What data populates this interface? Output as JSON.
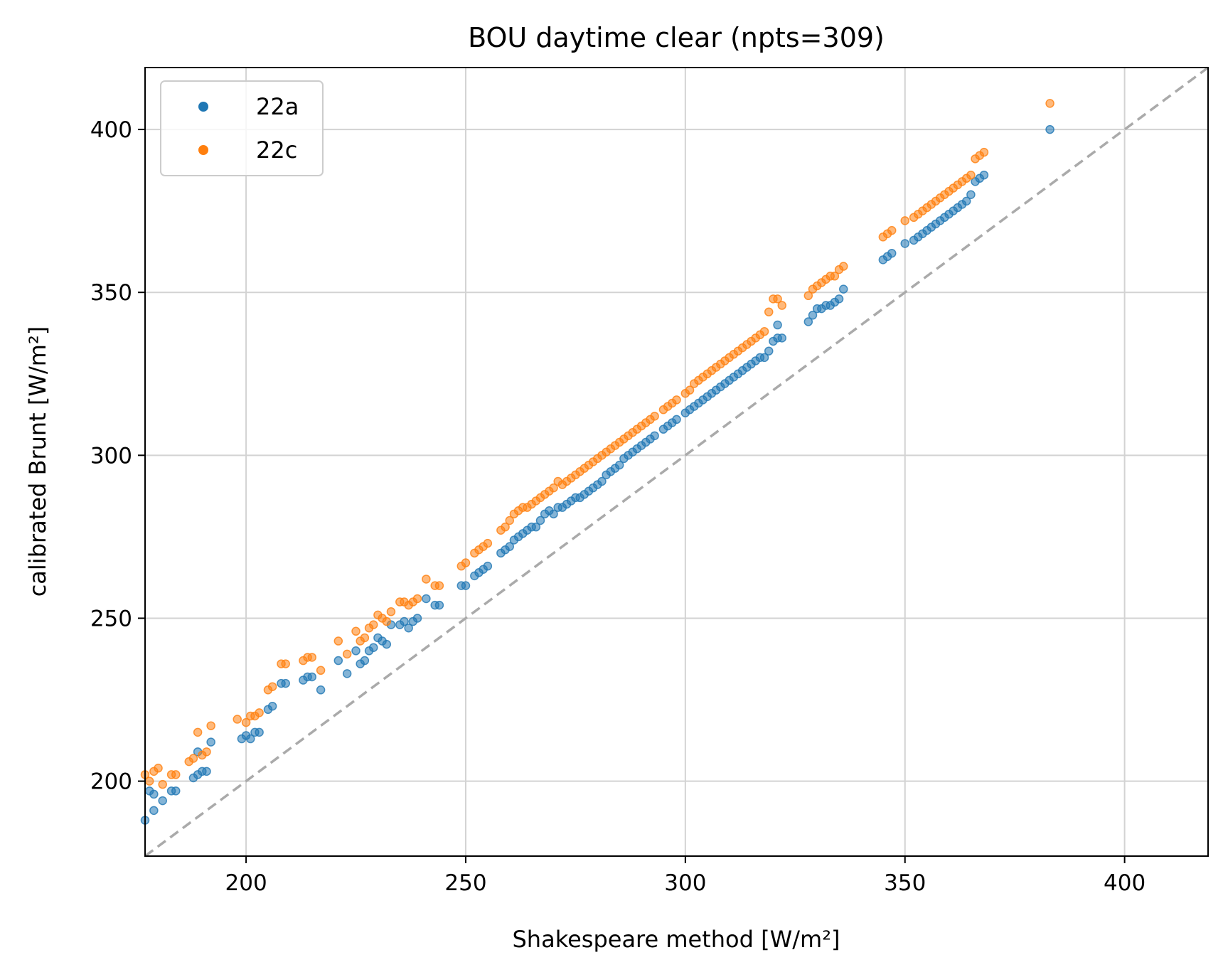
{
  "chart_data": {
    "type": "scatter",
    "title": "BOU daytime clear (npts=309)",
    "xlabel": "Shakespeare method [W/m²]",
    "ylabel": "calibrated Brunt [W/m²]",
    "xlim": [
      177,
      419
    ],
    "ylim": [
      177,
      419
    ],
    "xticks": [
      200,
      250,
      300,
      350,
      400
    ],
    "yticks": [
      200,
      250,
      300,
      350,
      400
    ],
    "grid": true,
    "legend_position": "top-left",
    "reference_line": {
      "type": "identity",
      "style": "dashed",
      "color": "#aaaaaa"
    },
    "series": [
      {
        "name": "22a",
        "color": "#1f77b4",
        "points": [
          [
            177,
            188
          ],
          [
            178,
            197
          ],
          [
            179,
            196
          ],
          [
            179,
            191
          ],
          [
            181,
            194
          ],
          [
            183,
            197
          ],
          [
            184,
            197
          ],
          [
            188,
            201
          ],
          [
            189,
            202
          ],
          [
            189,
            209
          ],
          [
            190,
            203
          ],
          [
            191,
            203
          ],
          [
            192,
            212
          ],
          [
            199,
            213
          ],
          [
            200,
            214
          ],
          [
            201,
            213
          ],
          [
            202,
            215
          ],
          [
            203,
            215
          ],
          [
            205,
            222
          ],
          [
            206,
            223
          ],
          [
            208,
            230
          ],
          [
            209,
            230
          ],
          [
            213,
            231
          ],
          [
            214,
            232
          ],
          [
            215,
            232
          ],
          [
            217,
            228
          ],
          [
            221,
            237
          ],
          [
            223,
            233
          ],
          [
            225,
            240
          ],
          [
            226,
            236
          ],
          [
            227,
            237
          ],
          [
            228,
            240
          ],
          [
            229,
            241
          ],
          [
            230,
            244
          ],
          [
            231,
            243
          ],
          [
            232,
            242
          ],
          [
            233,
            248
          ],
          [
            235,
            248
          ],
          [
            236,
            249
          ],
          [
            237,
            247
          ],
          [
            238,
            249
          ],
          [
            239,
            250
          ],
          [
            241,
            256
          ],
          [
            243,
            254
          ],
          [
            244,
            254
          ],
          [
            249,
            260
          ],
          [
            250,
            260
          ],
          [
            252,
            263
          ],
          [
            253,
            264
          ],
          [
            254,
            265
          ],
          [
            255,
            266
          ],
          [
            258,
            270
          ],
          [
            259,
            271
          ],
          [
            260,
            272
          ],
          [
            261,
            274
          ],
          [
            262,
            275
          ],
          [
            263,
            276
          ],
          [
            264,
            277
          ],
          [
            265,
            278
          ],
          [
            266,
            278
          ],
          [
            267,
            280
          ],
          [
            268,
            282
          ],
          [
            269,
            283
          ],
          [
            270,
            282
          ],
          [
            271,
            284
          ],
          [
            272,
            284
          ],
          [
            273,
            285
          ],
          [
            274,
            286
          ],
          [
            275,
            287
          ],
          [
            276,
            287
          ],
          [
            277,
            288
          ],
          [
            278,
            289
          ],
          [
            279,
            290
          ],
          [
            280,
            291
          ],
          [
            281,
            292
          ],
          [
            282,
            294
          ],
          [
            283,
            295
          ],
          [
            284,
            296
          ],
          [
            285,
            297
          ],
          [
            286,
            299
          ],
          [
            287,
            300
          ],
          [
            288,
            301
          ],
          [
            289,
            302
          ],
          [
            290,
            303
          ],
          [
            291,
            304
          ],
          [
            292,
            305
          ],
          [
            293,
            306
          ],
          [
            295,
            308
          ],
          [
            296,
            309
          ],
          [
            297,
            310
          ],
          [
            298,
            311
          ],
          [
            300,
            313
          ],
          [
            301,
            314
          ],
          [
            302,
            315
          ],
          [
            303,
            316
          ],
          [
            304,
            317
          ],
          [
            305,
            318
          ],
          [
            306,
            319
          ],
          [
            307,
            320
          ],
          [
            308,
            321
          ],
          [
            309,
            322
          ],
          [
            310,
            323
          ],
          [
            311,
            324
          ],
          [
            312,
            325
          ],
          [
            313,
            326
          ],
          [
            314,
            327
          ],
          [
            315,
            328
          ],
          [
            316,
            329
          ],
          [
            317,
            330
          ],
          [
            318,
            330
          ],
          [
            319,
            332
          ],
          [
            320,
            335
          ],
          [
            321,
            336
          ],
          [
            322,
            336
          ],
          [
            321,
            340
          ],
          [
            328,
            341
          ],
          [
            329,
            343
          ],
          [
            330,
            345
          ],
          [
            331,
            345
          ],
          [
            332,
            346
          ],
          [
            333,
            346
          ],
          [
            334,
            347
          ],
          [
            335,
            348
          ],
          [
            336,
            351
          ],
          [
            345,
            360
          ],
          [
            346,
            361
          ],
          [
            347,
            362
          ],
          [
            350,
            365
          ],
          [
            352,
            366
          ],
          [
            353,
            367
          ],
          [
            354,
            368
          ],
          [
            355,
            369
          ],
          [
            356,
            370
          ],
          [
            357,
            371
          ],
          [
            358,
            372
          ],
          [
            359,
            373
          ],
          [
            360,
            374
          ],
          [
            361,
            375
          ],
          [
            362,
            376
          ],
          [
            363,
            377
          ],
          [
            364,
            378
          ],
          [
            365,
            380
          ],
          [
            366,
            384
          ],
          [
            367,
            385
          ],
          [
            368,
            386
          ],
          [
            383,
            400
          ]
        ]
      },
      {
        "name": "22c",
        "color": "#ff7f0e",
        "points": [
          [
            177,
            202
          ],
          [
            178,
            200
          ],
          [
            179,
            203
          ],
          [
            180,
            204
          ],
          [
            181,
            199
          ],
          [
            183,
            202
          ],
          [
            184,
            202
          ],
          [
            187,
            206
          ],
          [
            188,
            207
          ],
          [
            189,
            215
          ],
          [
            190,
            208
          ],
          [
            191,
            209
          ],
          [
            192,
            217
          ],
          [
            198,
            219
          ],
          [
            200,
            218
          ],
          [
            201,
            220
          ],
          [
            202,
            220
          ],
          [
            203,
            221
          ],
          [
            205,
            228
          ],
          [
            206,
            229
          ],
          [
            208,
            236
          ],
          [
            209,
            236
          ],
          [
            213,
            237
          ],
          [
            214,
            238
          ],
          [
            215,
            238
          ],
          [
            217,
            234
          ],
          [
            221,
            243
          ],
          [
            223,
            239
          ],
          [
            225,
            246
          ],
          [
            226,
            243
          ],
          [
            227,
            244
          ],
          [
            228,
            247
          ],
          [
            229,
            248
          ],
          [
            230,
            251
          ],
          [
            231,
            250
          ],
          [
            232,
            249
          ],
          [
            233,
            252
          ],
          [
            235,
            255
          ],
          [
            236,
            255
          ],
          [
            237,
            254
          ],
          [
            238,
            255
          ],
          [
            239,
            256
          ],
          [
            241,
            262
          ],
          [
            243,
            260
          ],
          [
            244,
            260
          ],
          [
            249,
            266
          ],
          [
            250,
            267
          ],
          [
            252,
            270
          ],
          [
            253,
            271
          ],
          [
            254,
            272
          ],
          [
            255,
            273
          ],
          [
            258,
            277
          ],
          [
            259,
            278
          ],
          [
            260,
            280
          ],
          [
            261,
            282
          ],
          [
            262,
            283
          ],
          [
            263,
            284
          ],
          [
            264,
            284
          ],
          [
            265,
            285
          ],
          [
            266,
            286
          ],
          [
            267,
            287
          ],
          [
            268,
            288
          ],
          [
            269,
            289
          ],
          [
            270,
            290
          ],
          [
            271,
            292
          ],
          [
            272,
            291
          ],
          [
            273,
            292
          ],
          [
            274,
            293
          ],
          [
            275,
            294
          ],
          [
            276,
            295
          ],
          [
            277,
            296
          ],
          [
            278,
            297
          ],
          [
            279,
            298
          ],
          [
            280,
            299
          ],
          [
            281,
            300
          ],
          [
            282,
            301
          ],
          [
            283,
            302
          ],
          [
            284,
            303
          ],
          [
            285,
            304
          ],
          [
            286,
            305
          ],
          [
            287,
            306
          ],
          [
            288,
            307
          ],
          [
            289,
            308
          ],
          [
            290,
            309
          ],
          [
            291,
            310
          ],
          [
            292,
            311
          ],
          [
            293,
            312
          ],
          [
            295,
            314
          ],
          [
            296,
            315
          ],
          [
            297,
            316
          ],
          [
            298,
            317
          ],
          [
            300,
            319
          ],
          [
            301,
            320
          ],
          [
            302,
            322
          ],
          [
            303,
            323
          ],
          [
            304,
            324
          ],
          [
            305,
            325
          ],
          [
            306,
            326
          ],
          [
            307,
            327
          ],
          [
            308,
            328
          ],
          [
            309,
            329
          ],
          [
            310,
            330
          ],
          [
            311,
            331
          ],
          [
            312,
            332
          ],
          [
            313,
            333
          ],
          [
            314,
            334
          ],
          [
            315,
            335
          ],
          [
            316,
            336
          ],
          [
            317,
            337
          ],
          [
            318,
            338
          ],
          [
            319,
            344
          ],
          [
            320,
            348
          ],
          [
            321,
            348
          ],
          [
            322,
            346
          ],
          [
            328,
            349
          ],
          [
            329,
            351
          ],
          [
            330,
            352
          ],
          [
            331,
            353
          ],
          [
            332,
            354
          ],
          [
            333,
            355
          ],
          [
            334,
            355
          ],
          [
            335,
            357
          ],
          [
            336,
            358
          ],
          [
            345,
            367
          ],
          [
            346,
            368
          ],
          [
            347,
            369
          ],
          [
            350,
            372
          ],
          [
            352,
            373
          ],
          [
            353,
            374
          ],
          [
            354,
            375
          ],
          [
            355,
            376
          ],
          [
            356,
            377
          ],
          [
            357,
            378
          ],
          [
            358,
            379
          ],
          [
            359,
            380
          ],
          [
            360,
            381
          ],
          [
            361,
            382
          ],
          [
            362,
            383
          ],
          [
            363,
            384
          ],
          [
            364,
            385
          ],
          [
            365,
            386
          ],
          [
            366,
            391
          ],
          [
            367,
            392
          ],
          [
            368,
            393
          ],
          [
            383,
            408
          ]
        ]
      }
    ]
  }
}
